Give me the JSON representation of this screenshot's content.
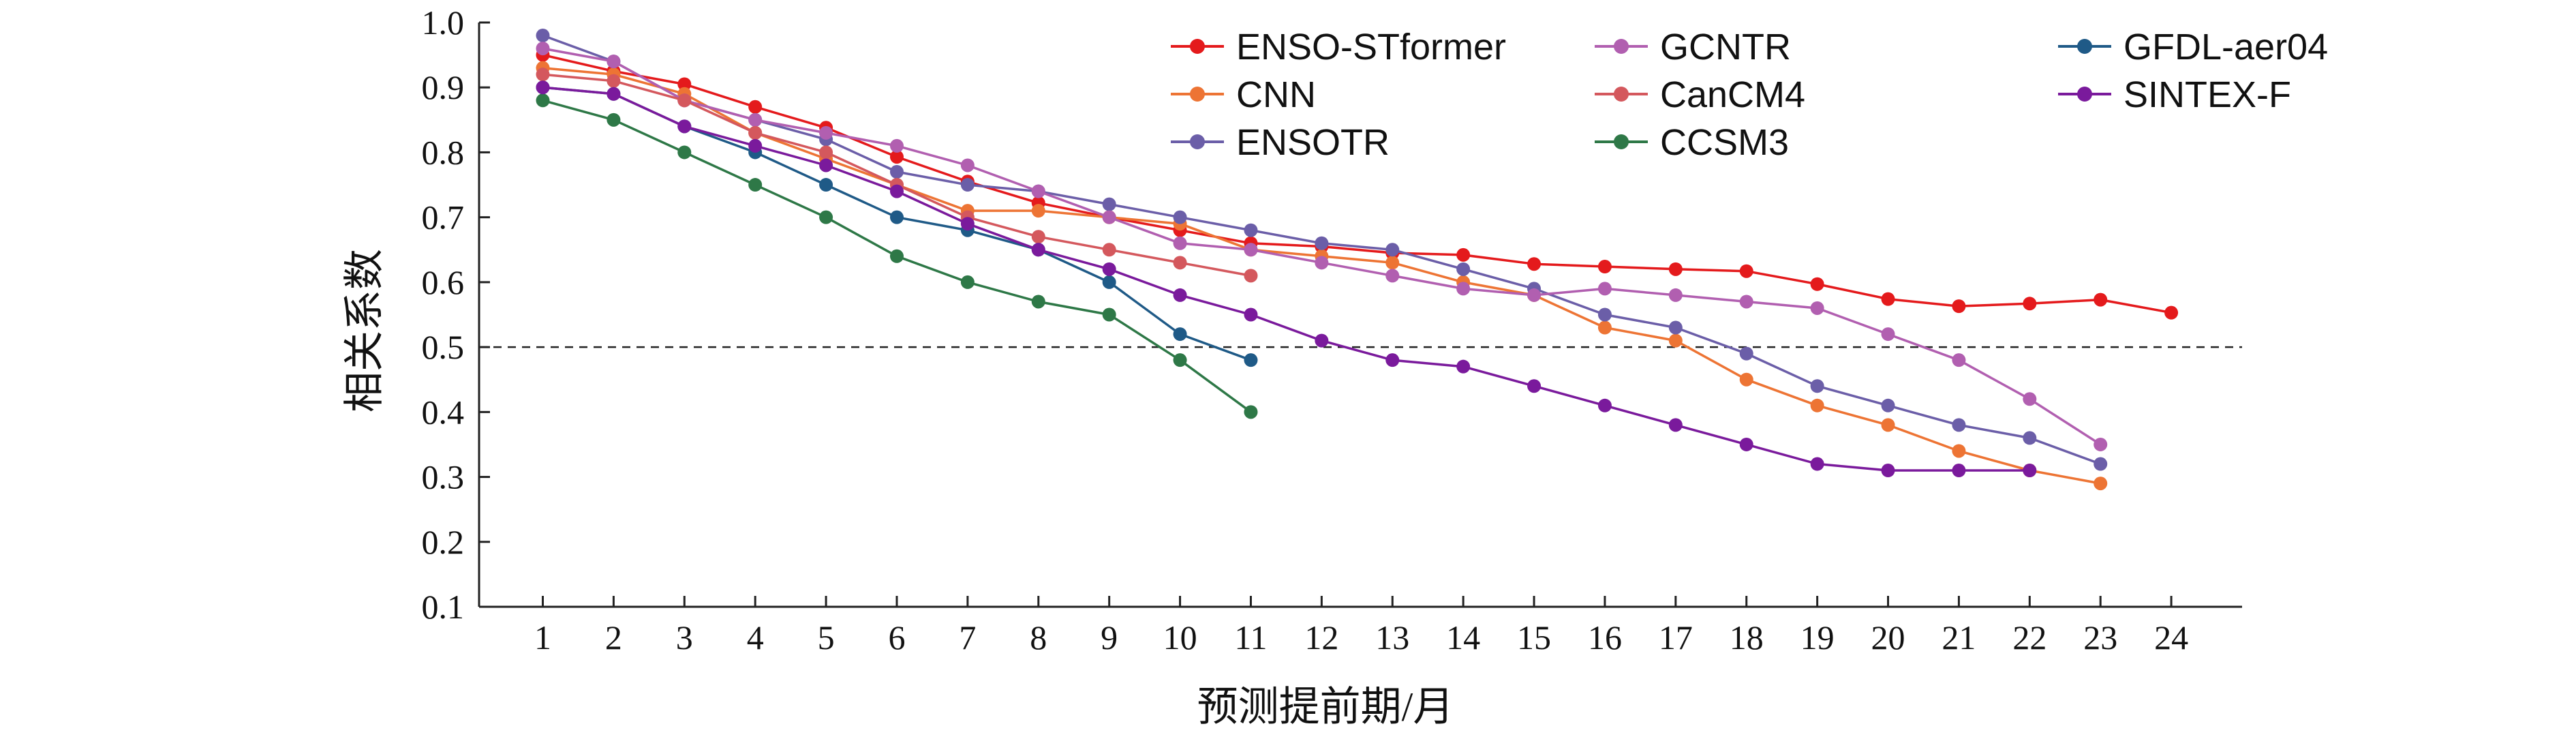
{
  "chart_data": {
    "type": "line",
    "title": "",
    "xlabel": "预测提前期/月",
    "ylabel": "相关系数",
    "xlim": [
      0.1,
      25
    ],
    "ylim": [
      0.1,
      1.0
    ],
    "x_ticks": [
      1,
      2,
      3,
      4,
      5,
      6,
      7,
      8,
      9,
      10,
      11,
      12,
      13,
      14,
      15,
      16,
      17,
      18,
      19,
      20,
      21,
      22,
      23,
      24
    ],
    "y_ticks": [
      0.1,
      0.2,
      0.3,
      0.4,
      0.5,
      0.6,
      0.7,
      0.8,
      0.9,
      1.0
    ],
    "y_tick_labels": [
      "0.1",
      "0.2",
      "0.3",
      "0.4",
      "0.5",
      "0.6",
      "0.7",
      "0.8",
      "0.9",
      "1.0"
    ],
    "reference_line": {
      "y": 0.5,
      "style": "dashed"
    },
    "grid": false,
    "legend_position": "top-right, three columns",
    "series": [
      {
        "name": "ENSO-STformer",
        "color": "#e41a1c",
        "x": [
          1,
          2,
          3,
          4,
          5,
          6,
          7,
          8,
          9,
          10,
          11,
          12,
          13,
          14,
          15,
          16,
          17,
          18,
          19,
          20,
          21,
          22,
          23,
          24
        ],
        "values": [
          0.95,
          0.925,
          0.905,
          0.87,
          0.838,
          0.793,
          0.755,
          0.722,
          0.7,
          0.68,
          0.66,
          0.655,
          0.645,
          0.642,
          0.628,
          0.624,
          0.62,
          0.617,
          0.597,
          0.574,
          0.563,
          0.567,
          0.573,
          0.553
        ]
      },
      {
        "name": "CNN",
        "color": "#ed7434",
        "x": [
          1,
          2,
          3,
          4,
          5,
          6,
          7,
          8,
          9,
          10,
          11,
          12,
          13,
          14,
          15,
          16,
          17,
          18,
          19,
          20,
          21,
          22,
          23
        ],
        "values": [
          0.93,
          0.92,
          0.89,
          0.83,
          0.79,
          0.75,
          0.71,
          0.71,
          0.7,
          0.69,
          0.65,
          0.64,
          0.63,
          0.6,
          0.58,
          0.53,
          0.51,
          0.45,
          0.41,
          0.38,
          0.34,
          0.31,
          0.29
        ]
      },
      {
        "name": "ENSOTR",
        "color": "#6b5ea8",
        "x": [
          1,
          2,
          3,
          4,
          5,
          6,
          7,
          8,
          9,
          10,
          11,
          12,
          13,
          14,
          15,
          16,
          17,
          18,
          19,
          20,
          21,
          22,
          23
        ],
        "values": [
          0.98,
          0.94,
          0.88,
          0.85,
          0.82,
          0.77,
          0.75,
          0.74,
          0.72,
          0.7,
          0.68,
          0.66,
          0.65,
          0.62,
          0.59,
          0.55,
          0.53,
          0.49,
          0.44,
          0.41,
          0.38,
          0.36,
          0.32
        ]
      },
      {
        "name": "GCNTR",
        "color": "#b15fb0",
        "x": [
          1,
          2,
          3,
          4,
          5,
          6,
          7,
          8,
          9,
          10,
          11,
          12,
          13,
          14,
          15,
          16,
          17,
          18,
          19,
          20,
          21,
          22,
          23
        ],
        "values": [
          0.96,
          0.94,
          0.88,
          0.85,
          0.83,
          0.81,
          0.78,
          0.74,
          0.7,
          0.66,
          0.65,
          0.63,
          0.61,
          0.59,
          0.58,
          0.59,
          0.58,
          0.57,
          0.56,
          0.52,
          0.48,
          0.42,
          0.35
        ]
      },
      {
        "name": "CanCM4",
        "color": "#d4585d",
        "x": [
          1,
          2,
          3,
          4,
          5,
          6,
          7,
          8,
          9,
          10,
          11
        ],
        "values": [
          0.92,
          0.91,
          0.88,
          0.83,
          0.8,
          0.75,
          0.7,
          0.67,
          0.65,
          0.63,
          0.61
        ]
      },
      {
        "name": "CCSM3",
        "color": "#2e7847",
        "x": [
          1,
          2,
          3,
          4,
          5,
          6,
          7,
          8,
          9,
          10,
          11
        ],
        "values": [
          0.88,
          0.85,
          0.8,
          0.75,
          0.7,
          0.64,
          0.6,
          0.57,
          0.55,
          0.48,
          0.4
        ]
      },
      {
        "name": "GFDL-aer04",
        "color": "#1f5a87",
        "x": [
          1,
          2,
          3,
          4,
          5,
          6,
          7,
          8,
          9,
          10,
          11
        ],
        "values": [
          0.9,
          0.89,
          0.84,
          0.8,
          0.75,
          0.7,
          0.68,
          0.65,
          0.6,
          0.52,
          0.48
        ]
      },
      {
        "name": "SINTEX-F",
        "color": "#7a1a9c",
        "x": [
          1,
          2,
          3,
          4,
          5,
          6,
          7,
          8,
          9,
          10,
          11,
          12,
          13,
          14,
          15,
          16,
          17,
          18,
          19,
          20,
          21,
          22
        ],
        "values": [
          0.9,
          0.89,
          0.84,
          0.81,
          0.78,
          0.74,
          0.69,
          0.65,
          0.62,
          0.58,
          0.55,
          0.51,
          0.48,
          0.47,
          0.44,
          0.41,
          0.38,
          0.35,
          0.32,
          0.31,
          0.31,
          0.31
        ]
      }
    ]
  }
}
